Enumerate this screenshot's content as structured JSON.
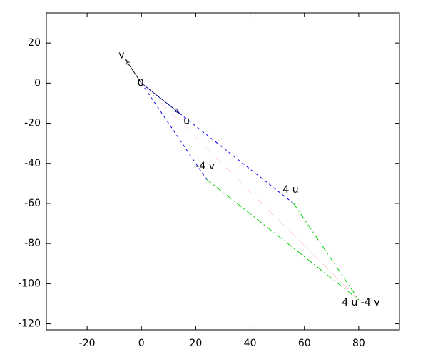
{
  "chart_data": {
    "type": "vector",
    "xlim": [
      -35,
      95
    ],
    "ylim": [
      -123,
      35
    ],
    "xticks": [
      -20,
      0,
      20,
      40,
      60,
      80
    ],
    "yticks": [
      20,
      0,
      -20,
      -40,
      -60,
      -80,
      -100,
      -120
    ],
    "points": [
      {
        "label": "0",
        "x": 0,
        "y": 0
      },
      {
        "label": "v",
        "x": -6,
        "y": 12
      },
      {
        "label": "u",
        "x": 14,
        "y": -15
      },
      {
        "label": "-4 v",
        "x": 24,
        "y": -48
      },
      {
        "label": "4 u",
        "x": 56,
        "y": -60
      },
      {
        "label": "4 u -4 v",
        "x": 80,
        "y": -108
      }
    ],
    "segments": [
      {
        "x": [
          0,
          -6
        ],
        "y": [
          0,
          12
        ],
        "color": "#000000",
        "style": "solid",
        "arrow": true
      },
      {
        "x": [
          0,
          14
        ],
        "y": [
          0,
          -15
        ],
        "color": "#000080",
        "style": "solid",
        "arrow": true
      },
      {
        "x": [
          0,
          24
        ],
        "y": [
          0,
          -48
        ],
        "color": "#0000ff",
        "style": "dashed",
        "arrow": false
      },
      {
        "x": [
          14,
          56
        ],
        "y": [
          -15,
          -60
        ],
        "color": "#0000ff",
        "style": "dashed",
        "arrow": false
      },
      {
        "x": [
          24,
          80
        ],
        "y": [
          -48,
          -108
        ],
        "color": "#00cc00",
        "style": "dashdot",
        "arrow": false
      },
      {
        "x": [
          56,
          80
        ],
        "y": [
          -60,
          -108
        ],
        "color": "#00cc00",
        "style": "dashdot",
        "arrow": false
      },
      {
        "x": [
          0,
          80
        ],
        "y": [
          0,
          -108
        ],
        "color": "#ff9999",
        "style": "dotted",
        "arrow": false
      }
    ]
  }
}
